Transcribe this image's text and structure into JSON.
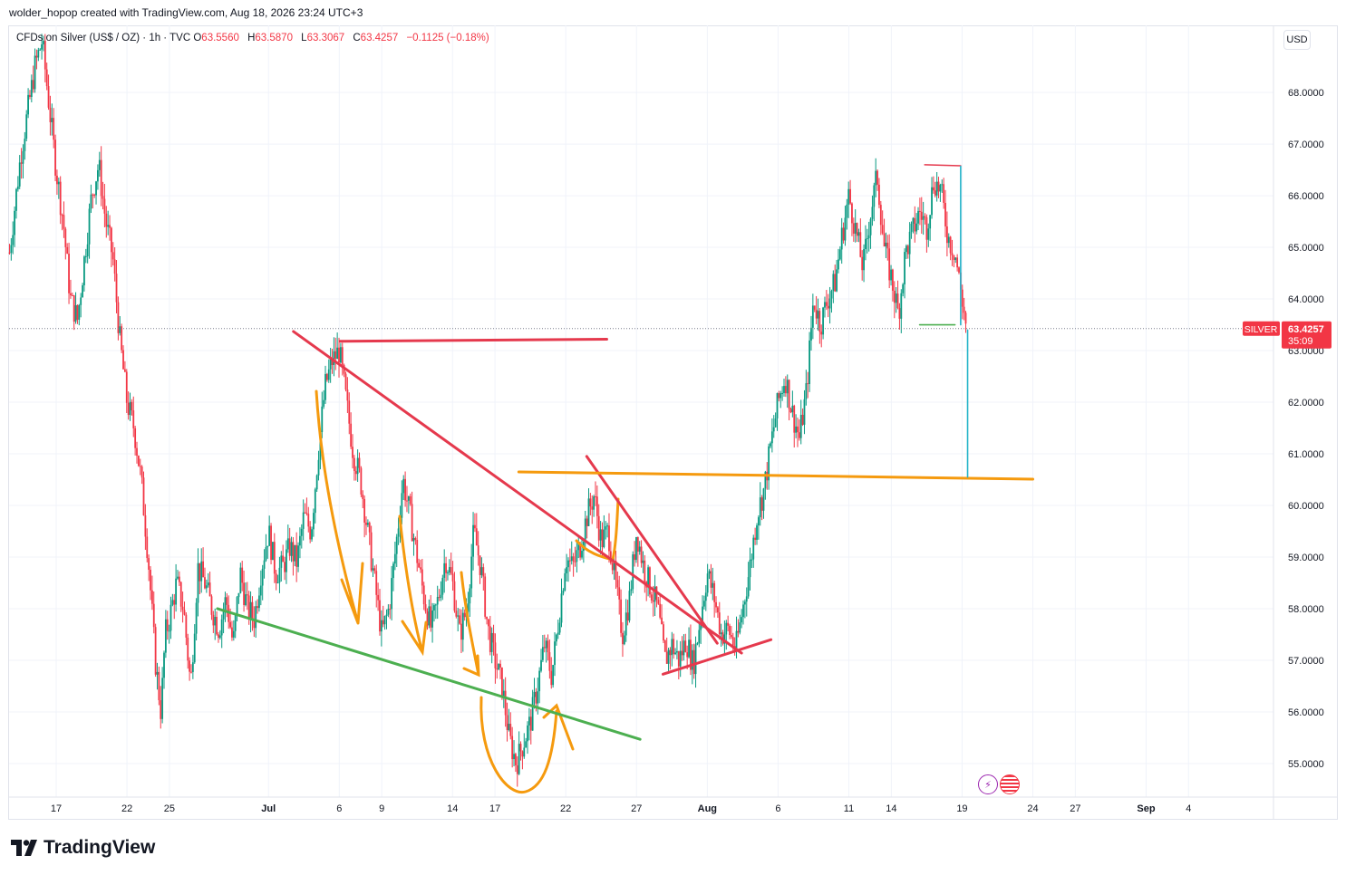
{
  "header": {
    "text": "wolder_hopop created with TradingView.com, Aug 18, 2026 23:24 UTC+3"
  },
  "legend": {
    "symbol": "CFDs on Silver (US$ / OZ) · 1h · TVC",
    "o_label": "O",
    "o": "63.5560",
    "h_label": "H",
    "h": "63.5870",
    "l_label": "L",
    "l": "63.3067",
    "c_label": "C",
    "c": "63.4257",
    "change": "−0.1125 (−0.18%)"
  },
  "currency": "USD",
  "price_tag": {
    "symbol": "SILVER",
    "price": "63.4257",
    "countdown": "35:09"
  },
  "brand": {
    "name": "TradingView",
    "icon": "tradingview-logo-icon"
  },
  "badges": [
    {
      "icon": "lightning-icon"
    },
    {
      "icon": "us-flag-icon"
    }
  ],
  "colors": {
    "up": "#089981",
    "down": "#f23645",
    "red_line": "#e5394d",
    "orange": "#f59a0e",
    "green": "#4caf50",
    "teal": "#22b3c9",
    "grid": "#f0f3fa"
  },
  "chart_data": {
    "type": "candlestick",
    "symbol": "CFDs on Silver (US$ / OZ)",
    "timeframe": "1h",
    "y_ticks": [
      55,
      56,
      57,
      58,
      59,
      60,
      61,
      62,
      63,
      64,
      65,
      66,
      67,
      68
    ],
    "y_tick_labels": [
      "55.0000",
      "56.0000",
      "57.0000",
      "58.0000",
      "59.0000",
      "60.0000",
      "61.0000",
      "62.0000",
      "63.0000",
      "64.0000",
      "65.0000",
      "66.0000",
      "67.0000",
      "68.0000"
    ],
    "ylim": [
      54.35,
      69.3
    ],
    "x_ticks": [
      {
        "label": "17",
        "t": -15
      },
      {
        "label": "22",
        "t": -10
      },
      {
        "label": "25",
        "t": -7
      },
      {
        "label": "Jul",
        "t": 0
      },
      {
        "label": "6",
        "t": 5
      },
      {
        "label": "9",
        "t": 8
      },
      {
        "label": "14",
        "t": 13
      },
      {
        "label": "17",
        "t": 16
      },
      {
        "label": "22",
        "t": 21
      },
      {
        "label": "27",
        "t": 26
      },
      {
        "label": "Aug",
        "t": 31
      },
      {
        "label": "6",
        "t": 36
      },
      {
        "label": "11",
        "t": 41
      },
      {
        "label": "14",
        "t": 44
      },
      {
        "label": "19",
        "t": 49
      },
      {
        "label": "24",
        "t": 54
      },
      {
        "label": "27",
        "t": 57
      },
      {
        "label": "Sep",
        "t": 62
      },
      {
        "label": "4",
        "t": 65
      }
    ],
    "xlim": [
      -18.33,
      71
    ],
    "close_path": [
      [
        -18.3,
        64.9
      ],
      [
        -17.5,
        66.8
      ],
      [
        -16.5,
        68.5
      ],
      [
        -16.0,
        69.0
      ],
      [
        -15.6,
        68.0
      ],
      [
        -15.0,
        66.5
      ],
      [
        -14.5,
        65.5
      ],
      [
        -14.0,
        64.0
      ],
      [
        -13.5,
        63.6
      ],
      [
        -13.0,
        64.8
      ],
      [
        -12.5,
        66.0
      ],
      [
        -12.0,
        66.6
      ],
      [
        -11.5,
        65.5
      ],
      [
        -11.0,
        64.8
      ],
      [
        -10.5,
        63.2
      ],
      [
        -10.0,
        62.0
      ],
      [
        -9.5,
        61.5
      ],
      [
        -9.0,
        60.5
      ],
      [
        -8.5,
        59.0
      ],
      [
        -8.0,
        57.0
      ],
      [
        -7.6,
        56.0
      ],
      [
        -7.3,
        57.5
      ],
      [
        -7.0,
        57.8
      ],
      [
        -6.5,
        58.5
      ],
      [
        -6.0,
        58.0
      ],
      [
        -5.5,
        56.5
      ],
      [
        -5.0,
        58.8
      ],
      [
        -4.5,
        58.5
      ],
      [
        -4.0,
        58.0
      ],
      [
        -3.5,
        57.6
      ],
      [
        -3.0,
        58.2
      ],
      [
        -2.5,
        57.3
      ],
      [
        -2.0,
        58.7
      ],
      [
        -1.5,
        58.0
      ],
      [
        -1.0,
        57.8
      ],
      [
        -0.5,
        58.8
      ],
      [
        0.0,
        59.5
      ],
      [
        0.5,
        58.7
      ],
      [
        1.0,
        58.8
      ],
      [
        1.5,
        59.2
      ],
      [
        2.0,
        58.9
      ],
      [
        2.5,
        59.8
      ],
      [
        3.0,
        59.5
      ],
      [
        3.5,
        61.0
      ],
      [
        4.0,
        62.3
      ],
      [
        4.5,
        62.8
      ],
      [
        5.0,
        63.0
      ],
      [
        5.5,
        62.0
      ],
      [
        6.0,
        61.0
      ],
      [
        6.5,
        60.5
      ],
      [
        7.0,
        59.5
      ],
      [
        7.5,
        58.5
      ],
      [
        8.0,
        57.5
      ],
      [
        8.5,
        58.0
      ],
      [
        9.0,
        59.2
      ],
      [
        9.5,
        60.5
      ],
      [
        10.0,
        59.8
      ],
      [
        10.5,
        59.0
      ],
      [
        11.0,
        58.2
      ],
      [
        11.5,
        57.6
      ],
      [
        12.0,
        58.2
      ],
      [
        12.5,
        59.0
      ],
      [
        13.0,
        58.5
      ],
      [
        13.5,
        57.5
      ],
      [
        14.0,
        58.0
      ],
      [
        14.5,
        59.5
      ],
      [
        15.0,
        58.8
      ],
      [
        15.5,
        57.6
      ],
      [
        16.0,
        57.0
      ],
      [
        16.5,
        56.5
      ],
      [
        17.0,
        55.5
      ],
      [
        17.5,
        55.0
      ],
      [
        18.0,
        55.4
      ],
      [
        18.5,
        55.8
      ],
      [
        19.0,
        56.5
      ],
      [
        19.5,
        57.3
      ],
      [
        20.0,
        56.7
      ],
      [
        20.5,
        57.8
      ],
      [
        21.0,
        59.0
      ],
      [
        21.5,
        58.8
      ],
      [
        22.0,
        59.2
      ],
      [
        22.5,
        59.8
      ],
      [
        23.0,
        60.2
      ],
      [
        23.5,
        59.3
      ],
      [
        24.0,
        59.5
      ],
      [
        24.5,
        58.5
      ],
      [
        25.0,
        57.5
      ],
      [
        25.5,
        58.2
      ],
      [
        26.0,
        59.5
      ],
      [
        26.5,
        58.8
      ],
      [
        27.0,
        58.4
      ],
      [
        27.5,
        58.0
      ],
      [
        28.0,
        57.0
      ],
      [
        28.5,
        57.3
      ],
      [
        29.0,
        57.0
      ],
      [
        29.5,
        57.4
      ],
      [
        30.0,
        56.9
      ],
      [
        30.5,
        57.8
      ],
      [
        31.0,
        58.7
      ],
      [
        31.5,
        58.2
      ],
      [
        32.0,
        57.5
      ],
      [
        32.5,
        57.6
      ],
      [
        33.0,
        57.2
      ],
      [
        33.5,
        58.0
      ],
      [
        34.0,
        58.8
      ],
      [
        34.5,
        59.8
      ],
      [
        35.0,
        60.3
      ],
      [
        35.5,
        61.2
      ],
      [
        36.0,
        62.0
      ],
      [
        36.5,
        62.5
      ],
      [
        37.0,
        61.8
      ],
      [
        37.5,
        61.3
      ],
      [
        38.0,
        62.2
      ],
      [
        38.5,
        64.0
      ],
      [
        39.0,
        63.5
      ],
      [
        39.5,
        64.0
      ],
      [
        40.0,
        64.3
      ],
      [
        40.5,
        65.2
      ],
      [
        41.0,
        66.0
      ],
      [
        41.5,
        65.3
      ],
      [
        42.0,
        64.6
      ],
      [
        42.5,
        65.6
      ],
      [
        43.0,
        66.4
      ],
      [
        43.5,
        65.0
      ],
      [
        44.0,
        64.4
      ],
      [
        44.5,
        63.7
      ],
      [
        45.0,
        64.9
      ],
      [
        45.5,
        65.3
      ],
      [
        46.0,
        65.7
      ],
      [
        46.5,
        65.4
      ],
      [
        47.0,
        66.3
      ],
      [
        47.5,
        66.1
      ],
      [
        48.0,
        65.2
      ],
      [
        48.5,
        64.9
      ],
      [
        49.0,
        64.0
      ],
      [
        49.3,
        63.4257
      ]
    ],
    "last_price": 63.4257,
    "annotations": [
      {
        "type": "trendline",
        "color": "red",
        "points": [
          [
            1.76,
            63.37
          ],
          [
            33.42,
            57.14
          ]
        ]
      },
      {
        "type": "horizontal",
        "color": "red",
        "points": [
          [
            5.06,
            63.18
          ],
          [
            23.9,
            63.22
          ]
        ]
      },
      {
        "type": "trendline",
        "color": "red",
        "points": [
          [
            22.48,
            60.95
          ],
          [
            31.7,
            57.33
          ]
        ]
      },
      {
        "type": "trendline",
        "color": "red",
        "points": [
          [
            27.87,
            56.73
          ],
          [
            35.5,
            57.4
          ]
        ]
      },
      {
        "type": "trendline",
        "color": "green",
        "points": [
          [
            -3.61,
            58.0
          ],
          [
            26.25,
            55.47
          ]
        ]
      },
      {
        "type": "horizontal",
        "color": "orange",
        "points": [
          [
            17.68,
            60.65
          ],
          [
            54.0,
            60.51
          ]
        ]
      },
      {
        "type": "horizontal",
        "color": "red",
        "points": [
          [
            46.36,
            66.6
          ],
          [
            48.9,
            66.58
          ]
        ]
      },
      {
        "type": "horizontal",
        "color": "green",
        "points": [
          [
            46.0,
            63.5
          ],
          [
            48.5,
            63.5
          ]
        ]
      },
      {
        "type": "vertical",
        "color": "teal",
        "points": [
          [
            48.9,
            66.57
          ],
          [
            48.9,
            63.5
          ]
        ]
      },
      {
        "type": "vertical",
        "color": "teal",
        "points": [
          [
            49.39,
            63.4
          ],
          [
            49.39,
            60.55
          ]
        ]
      }
    ]
  }
}
